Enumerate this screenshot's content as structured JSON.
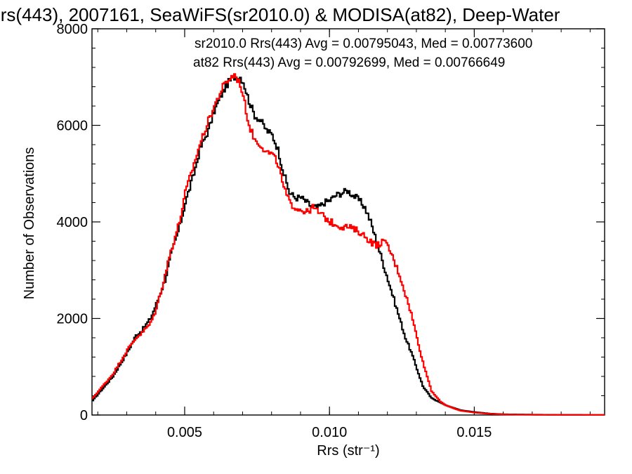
{
  "chart_data": {
    "type": "line",
    "step": true,
    "title": "Rrs(443), 2007161, SeaWiFS(sr2010.0) & MODISA(at82), Deep-Water",
    "xlabel": "Rrs (str⁻¹)",
    "ylabel": "Number of Observations",
    "xlim": [
      0.0018,
      0.0195
    ],
    "ylim": [
      0,
      8000
    ],
    "x_ticks": [
      {
        "value": 0.005,
        "label": "0.005"
      },
      {
        "value": 0.01,
        "label": "0.010"
      },
      {
        "value": 0.015,
        "label": "0.015"
      }
    ],
    "y_ticks": [
      {
        "value": 0,
        "label": "0"
      },
      {
        "value": 2000,
        "label": "2000"
      },
      {
        "value": 4000,
        "label": "4000"
      },
      {
        "value": 6000,
        "label": "6000"
      },
      {
        "value": 8000,
        "label": "8000"
      }
    ],
    "grid": false,
    "legend_position": "top-right",
    "series": [
      {
        "name": "sr2010.0",
        "legend": "sr2010.0 Rrs(443) Avg = 0.00795043, Med = 0.00773600",
        "color": "#000000",
        "x": [
          0.0018,
          0.0025,
          0.003,
          0.0033,
          0.0035,
          0.0038,
          0.004,
          0.0043,
          0.0045,
          0.0048,
          0.005,
          0.0053,
          0.0055,
          0.0058,
          0.006,
          0.0063,
          0.0065,
          0.0067,
          0.0069,
          0.007,
          0.0072,
          0.0074,
          0.0076,
          0.0078,
          0.008,
          0.0082,
          0.0084,
          0.0086,
          0.0088,
          0.009,
          0.0092,
          0.0094,
          0.0096,
          0.0098,
          0.01,
          0.0102,
          0.0104,
          0.0106,
          0.0108,
          0.011,
          0.0112,
          0.0114,
          0.0116,
          0.0118,
          0.012,
          0.0122,
          0.0124,
          0.0126,
          0.0128,
          0.013,
          0.0132,
          0.0135,
          0.0138,
          0.014,
          0.0143,
          0.0145,
          0.015,
          0.0155,
          0.016,
          0.017,
          0.018,
          0.0195
        ],
        "y": [
          300,
          800,
          1300,
          1650,
          1750,
          2000,
          2300,
          2800,
          3300,
          3900,
          4400,
          5000,
          5500,
          5900,
          6300,
          6700,
          6900,
          7000,
          7000,
          6900,
          6500,
          6200,
          6100,
          5900,
          5800,
          5500,
          5000,
          4600,
          4500,
          4500,
          4400,
          4300,
          4300,
          4400,
          4450,
          4550,
          4600,
          4650,
          4550,
          4450,
          4300,
          4000,
          3600,
          3200,
          2800,
          2400,
          2000,
          1600,
          1300,
          950,
          600,
          350,
          260,
          200,
          140,
          100,
          60,
          30,
          15,
          8,
          4,
          2
        ]
      },
      {
        "name": "at82",
        "legend": "at82 Rrs(443) Avg = 0.00792699, Med = 0.00766649",
        "color": "#ff0000",
        "x": [
          0.0018,
          0.0025,
          0.003,
          0.0033,
          0.0035,
          0.0038,
          0.004,
          0.0043,
          0.0045,
          0.0048,
          0.005,
          0.0053,
          0.0055,
          0.0058,
          0.006,
          0.0063,
          0.0065,
          0.0067,
          0.0069,
          0.007,
          0.0072,
          0.0074,
          0.0076,
          0.0078,
          0.008,
          0.0082,
          0.0084,
          0.0086,
          0.0088,
          0.009,
          0.0092,
          0.0094,
          0.0096,
          0.0098,
          0.01,
          0.0102,
          0.0104,
          0.0106,
          0.0108,
          0.011,
          0.0112,
          0.0114,
          0.0116,
          0.0118,
          0.012,
          0.0122,
          0.0124,
          0.0126,
          0.0128,
          0.013,
          0.0132,
          0.0135,
          0.0138,
          0.014,
          0.0143,
          0.0145,
          0.015,
          0.0155,
          0.016,
          0.017,
          0.018,
          0.0195
        ],
        "y": [
          350,
          850,
          1350,
          1600,
          1700,
          1900,
          2200,
          2900,
          3400,
          4000,
          4600,
          5200,
          5600,
          6100,
          6400,
          6800,
          6950,
          7050,
          6850,
          6600,
          6000,
          5700,
          5600,
          5450,
          5400,
          5200,
          4700,
          4400,
          4300,
          4250,
          4200,
          4300,
          4200,
          4100,
          4000,
          3950,
          3900,
          3900,
          3850,
          3800,
          3700,
          3600,
          3500,
          3600,
          3500,
          3200,
          2900,
          2500,
          2100,
          1600,
          1100,
          500,
          280,
          200,
          130,
          90,
          50,
          25,
          12,
          6,
          3,
          2
        ]
      }
    ]
  }
}
